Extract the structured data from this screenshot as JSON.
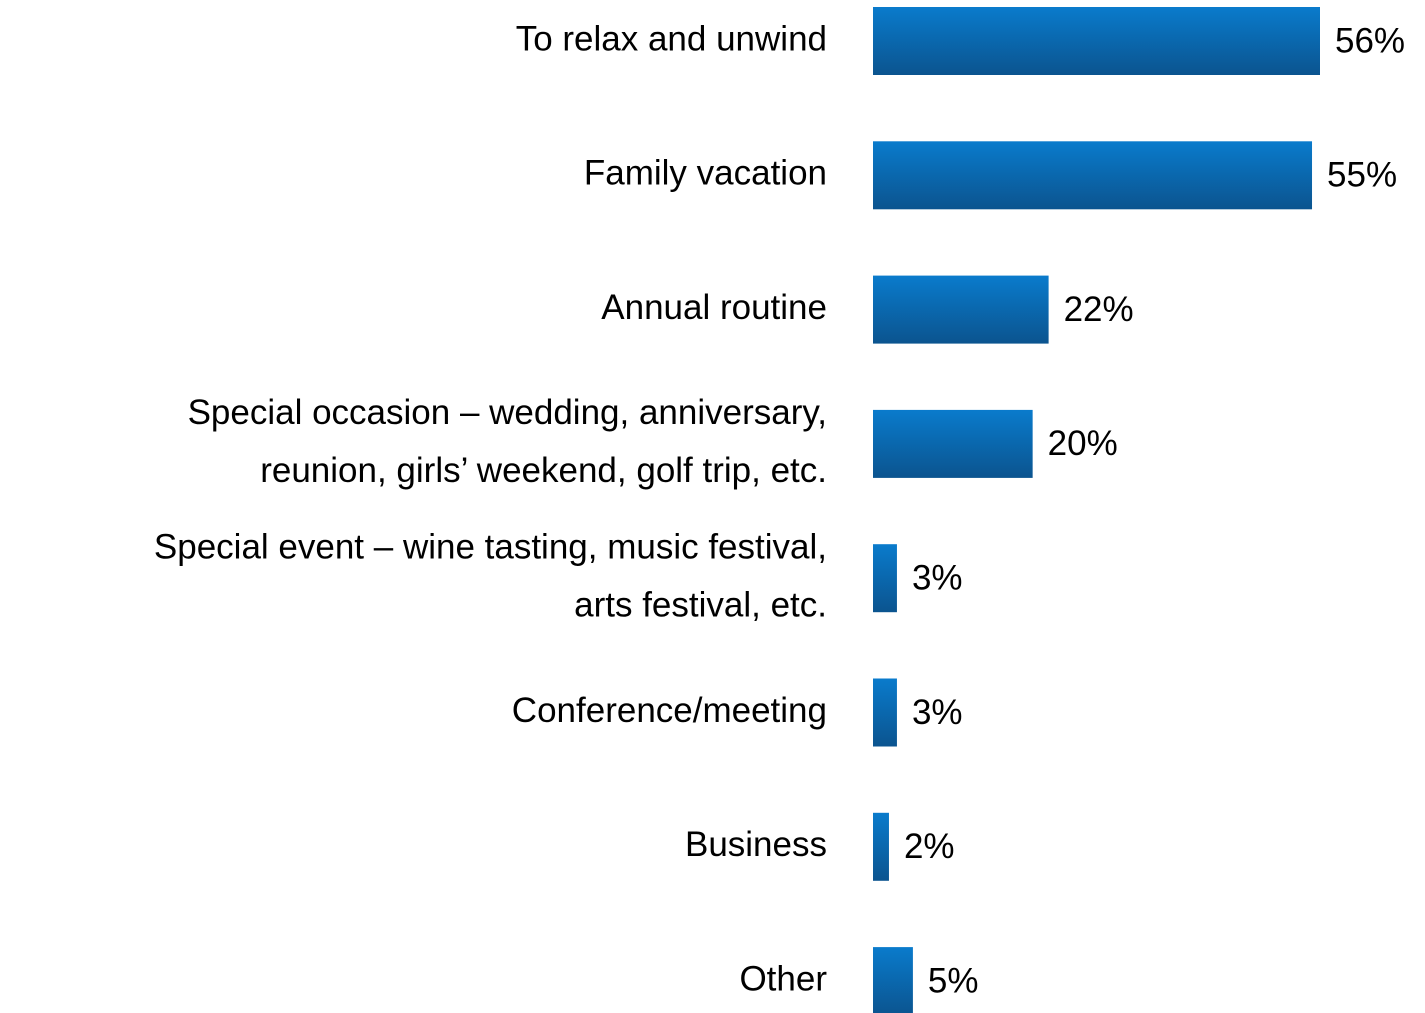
{
  "chart_data": {
    "type": "bar",
    "orientation": "horizontal",
    "categories": [
      [
        "To relax and unwind"
      ],
      [
        "Family vacation"
      ],
      [
        "Annual routine"
      ],
      [
        "Special occasion – wedding, anniversary,",
        "reunion, girls’ weekend, golf trip, etc."
      ],
      [
        "Special event – wine tasting, music festival,",
        "arts festival, etc."
      ],
      [
        "Conference/meeting"
      ],
      [
        "Business"
      ],
      [
        "Other"
      ]
    ],
    "values": [
      56,
      55,
      22,
      20,
      3,
      3,
      2,
      5
    ],
    "value_labels": [
      "56%",
      "55%",
      "22%",
      "20%",
      "3%",
      "3%",
      "2%",
      "5%"
    ],
    "color": "#0a6cb8"
  }
}
